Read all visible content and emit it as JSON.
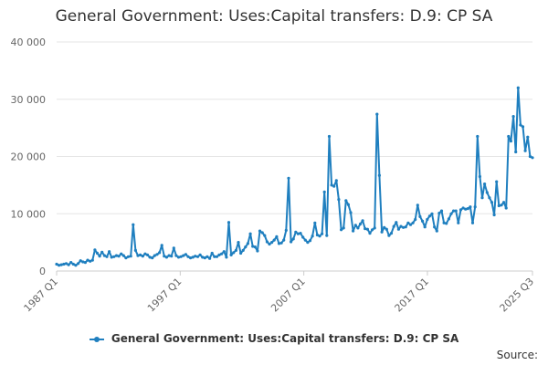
{
  "title": "General Government: Uses:Capital transfers: D.9: CP SA",
  "source_label": "Source:",
  "colors": {
    "series": "#1f7fbf",
    "grid": "#e6e6e6",
    "axis_text": "#666666"
  },
  "chart_data": {
    "type": "line",
    "title": "General Government: Uses:Capital transfers: D.9: CP SA",
    "xlabel": "",
    "ylabel": "",
    "ylim": [
      0,
      40000
    ],
    "y_ticks": [
      0,
      10000,
      20000,
      30000,
      40000
    ],
    "y_tick_labels": [
      "0",
      "10 000",
      "20 000",
      "30 000",
      "40 000"
    ],
    "x_start": "1987 Q1",
    "x_end": "2025 Q3",
    "x_ticks": [
      "1987 Q1",
      "1997 Q1",
      "2007 Q1",
      "2017 Q1",
      "2025 Q3"
    ],
    "grid": true,
    "legend_position": "bottom",
    "series": [
      {
        "name": "General Government: Uses:Capital transfers: D.9: CP SA",
        "values": [
          1200,
          1000,
          1100,
          1200,
          1300,
          1100,
          1500,
          1200,
          1000,
          1300,
          1800,
          1600,
          1500,
          1900,
          1700,
          1900,
          3700,
          3100,
          2600,
          3300,
          2700,
          2500,
          3400,
          2400,
          2500,
          2700,
          2600,
          3000,
          2700,
          2300,
          2500,
          2600,
          8100,
          3600,
          2700,
          2800,
          2600,
          3000,
          2800,
          2400,
          2300,
          2700,
          2900,
          3200,
          4500,
          2600,
          2400,
          2700,
          2600,
          4000,
          2700,
          2400,
          2500,
          2700,
          2900,
          2500,
          2300,
          2400,
          2600,
          2500,
          2800,
          2400,
          2300,
          2500,
          2200,
          3100,
          2500,
          2500,
          2800,
          3000,
          3400,
          2400,
          8500,
          2800,
          3200,
          3600,
          5000,
          3100,
          3600,
          4200,
          4800,
          6500,
          4300,
          4200,
          3500,
          7000,
          6700,
          6200,
          5100,
          4700,
          5000,
          5400,
          6000,
          4800,
          4900,
          5400,
          7100,
          16200,
          5100,
          5600,
          6800,
          6500,
          6600,
          5900,
          5400,
          5000,
          5300,
          6100,
          8400,
          6300,
          6100,
          6500,
          13800,
          6200,
          23500,
          15000,
          14800,
          15800,
          12500,
          7200,
          7500,
          12300,
          11600,
          10200,
          7000,
          8000,
          7500,
          8200,
          8800,
          7400,
          7300,
          6600,
          7200,
          7500,
          27400,
          16700,
          6800,
          7600,
          7300,
          6200,
          6600,
          7800,
          8500,
          7300,
          7800,
          7600,
          7700,
          8400,
          8100,
          8400,
          9000,
          11500,
          9500,
          8700,
          7700,
          9000,
          9600,
          10000,
          7700,
          7000,
          10100,
          10500,
          8400,
          8300,
          9100,
          10000,
          10500,
          10500,
          8400,
          10700,
          11000,
          10800,
          10900,
          11200,
          8400,
          11200,
          23500,
          16500,
          12800,
          15200,
          13700,
          12800,
          12000,
          9800,
          15600,
          11400,
          11500,
          12000,
          11000,
          23500,
          22700,
          27000,
          20800,
          32000,
          25500,
          25200,
          21000,
          23400,
          20000,
          19800
        ]
      }
    ]
  }
}
